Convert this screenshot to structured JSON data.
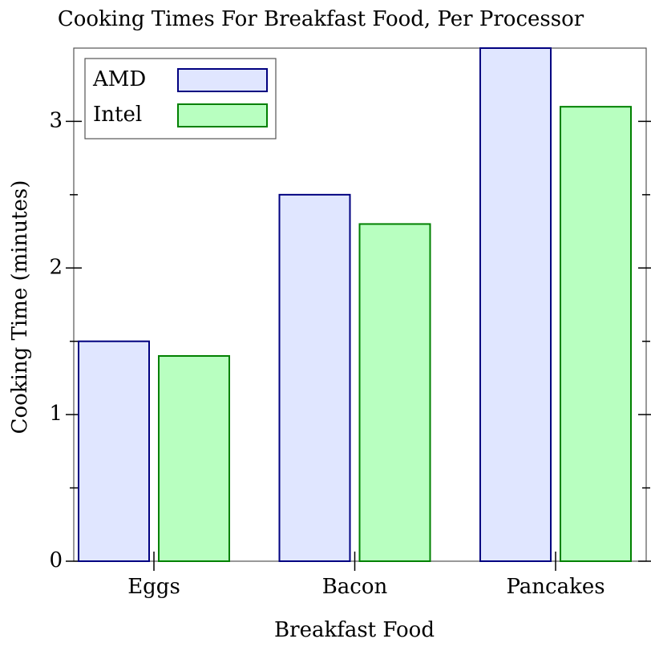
{
  "chart_data": {
    "type": "bar",
    "title": "Cooking Times For Breakfast Food, Per Processor",
    "x_label": "Breakfast Food",
    "y_label": "Cooking Time (minutes)",
    "categories": [
      "Eggs",
      "Bacon",
      "Pancakes"
    ],
    "series": [
      {
        "name": "AMD",
        "color": "#e0e6ff",
        "edge_color": "#000080",
        "values": [
          1.5,
          2.5,
          3.5
        ]
      },
      {
        "name": "Intel",
        "color": "#b8ffc0",
        "edge_color": "#008000",
        "values": [
          1.4,
          2.3,
          3.1
        ]
      }
    ],
    "ylim": [
      0,
      3.5
    ],
    "yticks": [
      0,
      1,
      2,
      3
    ],
    "minor_yticks": [
      0.5,
      1.5,
      2.5
    ],
    "legend": "top-left"
  }
}
